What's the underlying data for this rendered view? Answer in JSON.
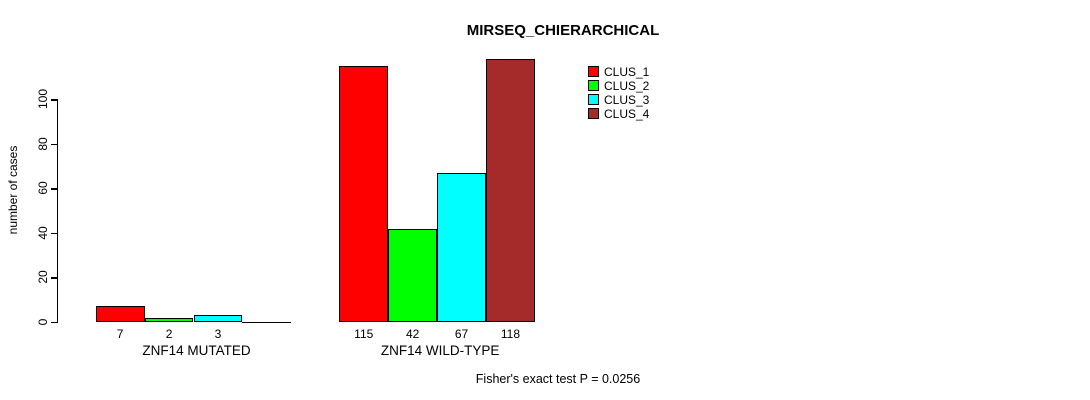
{
  "chart_data": {
    "type": "bar",
    "title": "MIRSEQ_CHIERARCHICAL",
    "ylabel": "number of cases",
    "xlabel": "",
    "y_ticks": [
      0,
      20,
      40,
      60,
      80,
      100
    ],
    "ylim": [
      0,
      100
    ],
    "grid": false,
    "legend_position": "top-right",
    "categories": [
      "ZNF14 MUTATED",
      "ZNF14 WILD-TYPE"
    ],
    "series": [
      {
        "name": "CLUS_1",
        "color": "#ff0000",
        "values": [
          7,
          115
        ]
      },
      {
        "name": "CLUS_2",
        "color": "#00ff00",
        "values": [
          2,
          42
        ]
      },
      {
        "name": "CLUS_3",
        "color": "#00ffff",
        "values": [
          3,
          67
        ]
      },
      {
        "name": "CLUS_4",
        "color": "#a52a2a",
        "values": [
          0,
          118
        ]
      }
    ],
    "bar_value_labels": [
      [
        "7",
        "2",
        "3",
        ""
      ],
      [
        "115",
        "42",
        "67",
        "118"
      ]
    ],
    "annotation": "Fisher's exact test P = 0.0256"
  }
}
